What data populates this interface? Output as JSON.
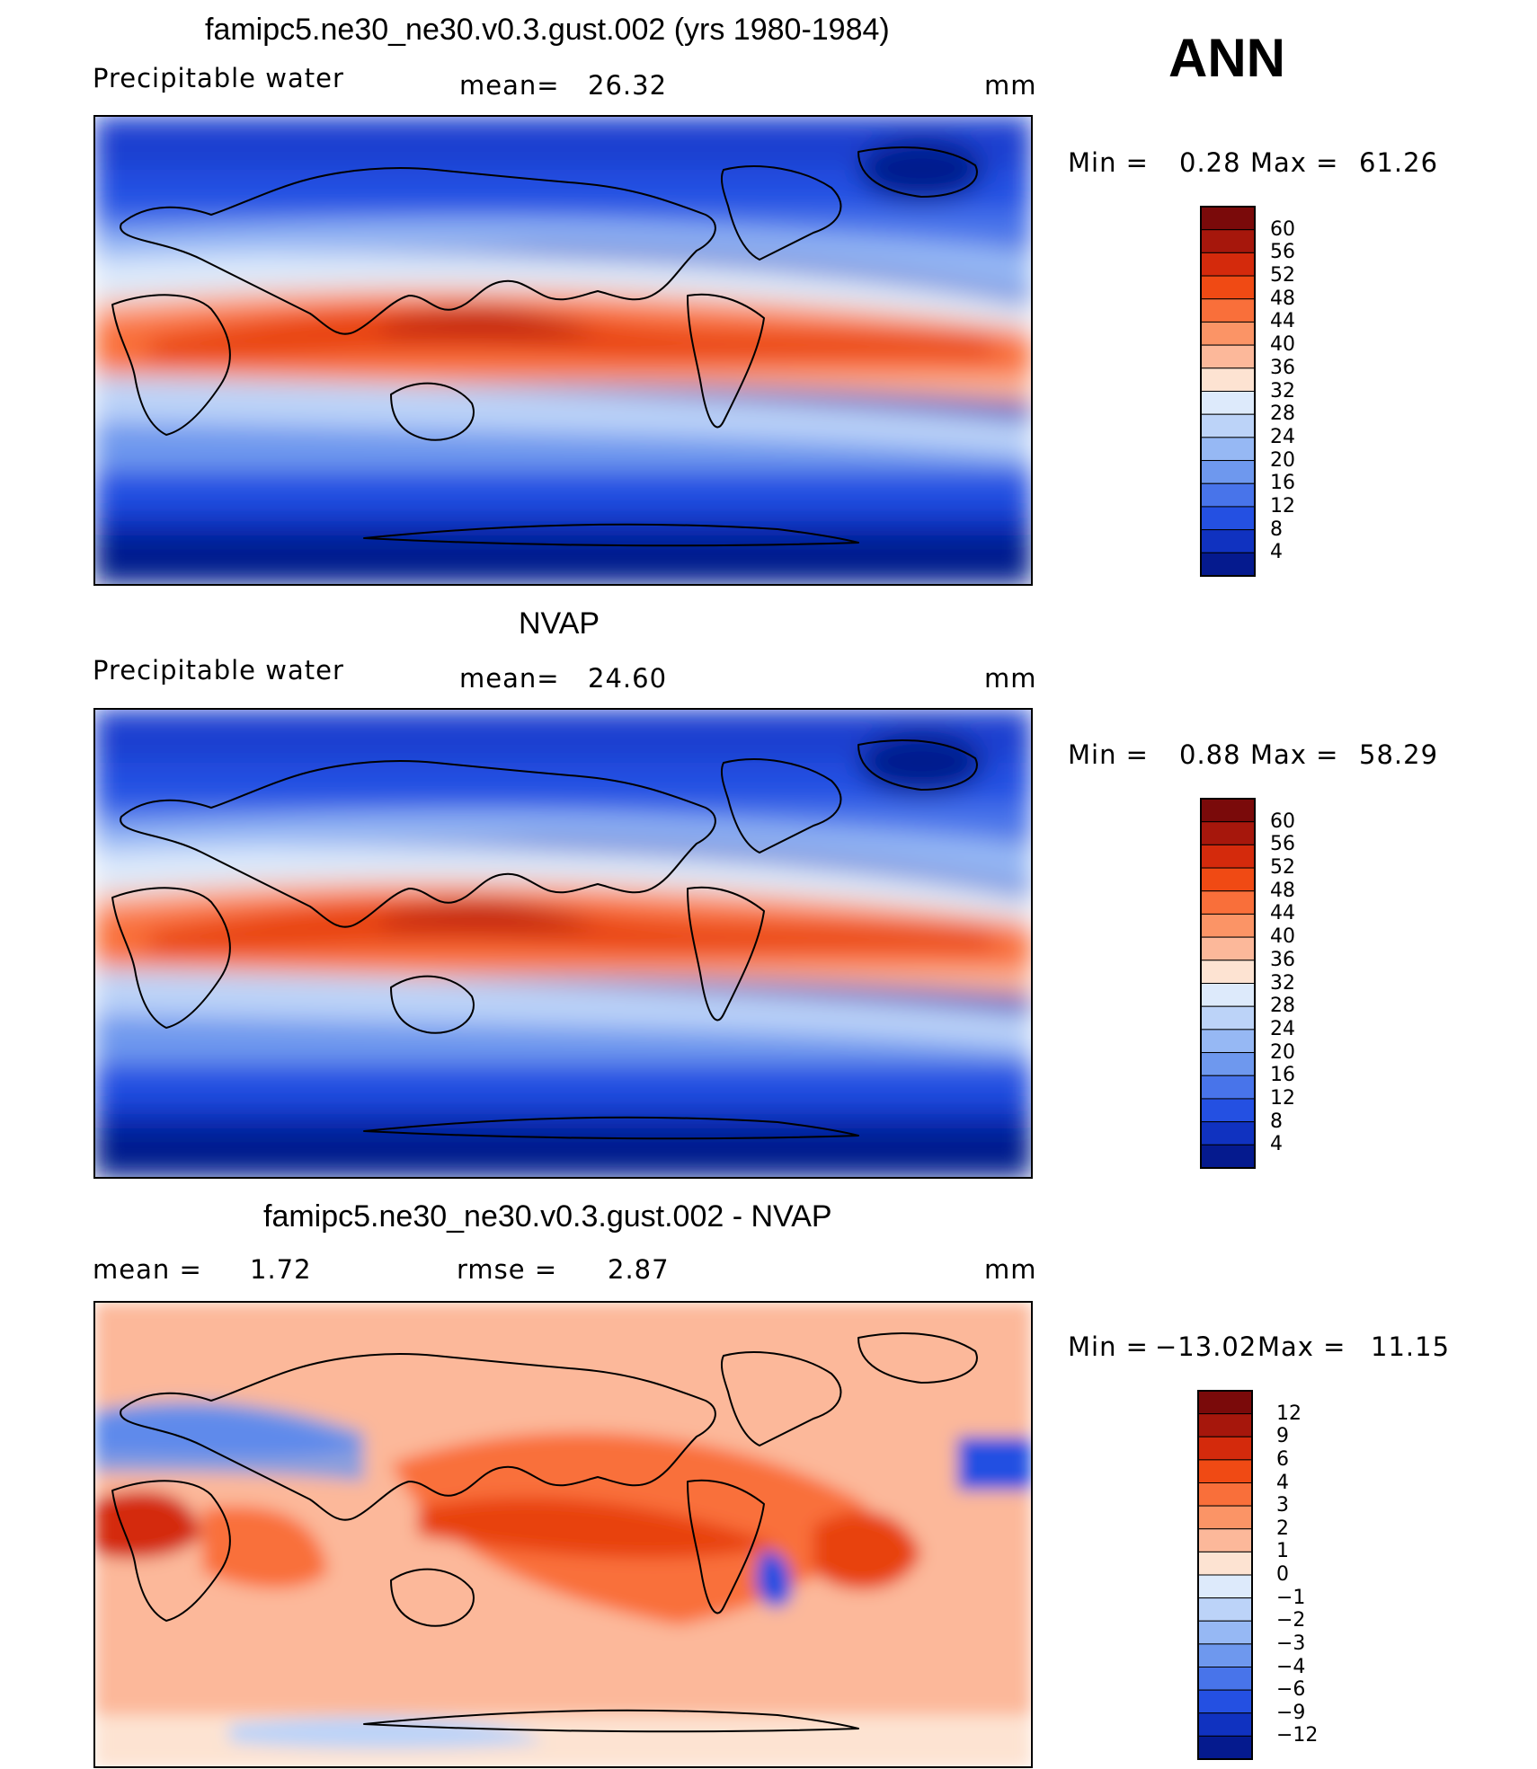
{
  "season": "ANN",
  "panels": [
    {
      "title": "famipc5.ne30_ne30.v0.3.gust.002 (yrs 1980-1984)",
      "left_label": "Precipitable  water",
      "mid_label": "mean=",
      "mid_value": "26.32",
      "units": "mm",
      "min_label": "Min  =",
      "min_value": "0.28",
      "max_label": "Max  =",
      "max_value": "61.26",
      "colorbar": {
        "labels": [
          "60",
          "56",
          "52",
          "48",
          "44",
          "40",
          "36",
          "32",
          "28",
          "24",
          "20",
          "16",
          "12",
          "8",
          "4"
        ],
        "colors": [
          "#7a0a0a",
          "#a6170c",
          "#d42a0c",
          "#f04a14",
          "#f96f3a",
          "#fb9466",
          "#fcb89a",
          "#fde3d2",
          "#ddeafb",
          "#bcd3f8",
          "#96b8f4",
          "#6e98ee",
          "#4874ea",
          "#2450e2",
          "#1032c0",
          "#051a8e"
        ]
      },
      "chart_data": {
        "type": "heatmap",
        "field": "Precipitable water",
        "units": "mm",
        "mean": 26.32,
        "min": 0.28,
        "max": 61.26,
        "levels": [
          4,
          8,
          12,
          16,
          20,
          24,
          28,
          32,
          36,
          40,
          44,
          48,
          52,
          56,
          60
        ]
      }
    },
    {
      "title": "NVAP",
      "left_label": "Precipitable  water",
      "mid_label": "mean=",
      "mid_value": "24.60",
      "units": "mm",
      "min_label": "Min  =",
      "min_value": "0.88",
      "max_label": "Max  =",
      "max_value": "58.29",
      "colorbar": {
        "labels": [
          "60",
          "56",
          "52",
          "48",
          "44",
          "40",
          "36",
          "32",
          "28",
          "24",
          "20",
          "16",
          "12",
          "8",
          "4"
        ],
        "colors": [
          "#7a0a0a",
          "#a6170c",
          "#d42a0c",
          "#f04a14",
          "#f96f3a",
          "#fb9466",
          "#fcb89a",
          "#fde3d2",
          "#ddeafb",
          "#bcd3f8",
          "#96b8f4",
          "#6e98ee",
          "#4874ea",
          "#2450e2",
          "#1032c0",
          "#051a8e"
        ]
      },
      "chart_data": {
        "type": "heatmap",
        "field": "Precipitable water",
        "units": "mm",
        "mean": 24.6,
        "min": 0.88,
        "max": 58.29,
        "levels": [
          4,
          8,
          12,
          16,
          20,
          24,
          28,
          32,
          36,
          40,
          44,
          48,
          52,
          56,
          60
        ]
      }
    },
    {
      "title": "famipc5.ne30_ne30.v0.3.gust.002 - NVAP",
      "left_label": "mean  =",
      "left_value": "1.72",
      "mid_label": "rmse  =",
      "mid_value": "2.87",
      "units": "mm",
      "min_label": "Min  =",
      "min_value": "−13.02",
      "max_label": "Max  =",
      "max_value": "11.15",
      "colorbar": {
        "labels": [
          "12",
          "9",
          "6",
          "4",
          "3",
          "2",
          "1",
          "0",
          "−1",
          "−2",
          "−3",
          "−4",
          "−6",
          "−9",
          "−12"
        ],
        "colors": [
          "#7a0a0a",
          "#a6170c",
          "#d42a0c",
          "#f04a14",
          "#f96f3a",
          "#fb9466",
          "#fcb89a",
          "#fde3d2",
          "#ddeafb",
          "#bcd3f8",
          "#96b8f4",
          "#6e98ee",
          "#4874ea",
          "#2450e2",
          "#1032c0",
          "#051a8e"
        ]
      },
      "chart_data": {
        "type": "heatmap",
        "field": "Precipitable water difference",
        "units": "mm",
        "mean": 1.72,
        "rmse": 2.87,
        "min": -13.02,
        "max": 11.15,
        "levels": [
          -12,
          -9,
          -6,
          -4,
          -3,
          -2,
          -1,
          0,
          1,
          2,
          3,
          4,
          6,
          9,
          12
        ]
      }
    }
  ]
}
